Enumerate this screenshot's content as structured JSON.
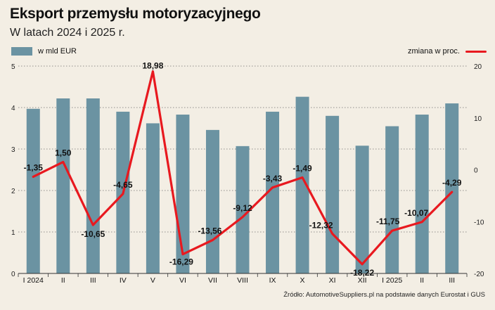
{
  "title": "Eksport przemysłu motoryzacyjnego",
  "subtitle": "W latach 2024 i 2025 r.",
  "source": "Źródło: AutomotiveSuppliers.pl na podstawie danych Eurostat i GUS",
  "colors": {
    "bars": "#6b93a2",
    "line": "#e8191f",
    "background": "#f3eee4",
    "grid": "#333333"
  },
  "chart_data": {
    "type": "bar+line",
    "title": "Eksport przemysłu motoryzacyjnego",
    "subtitle": "W latach 2024 i 2025 r.",
    "categories": [
      "I 2024",
      "II",
      "III",
      "IV",
      "V",
      "VI",
      "VII",
      "VIII",
      "IX",
      "X",
      "XI",
      "XII",
      "I 2025",
      "II",
      "III"
    ],
    "series": [
      {
        "name": "w mld EUR",
        "type": "bar",
        "axis": "left",
        "values": [
          3.97,
          4.22,
          4.22,
          3.9,
          3.62,
          3.83,
          3.46,
          3.07,
          3.9,
          4.26,
          3.8,
          3.08,
          3.55,
          3.83,
          4.1
        ]
      },
      {
        "name": "zmiana w proc.",
        "type": "line",
        "axis": "right",
        "values": [
          -1.35,
          1.5,
          -10.65,
          -4.65,
          18.98,
          -16.29,
          -13.56,
          -9.12,
          -3.43,
          -1.49,
          -12.32,
          -18.22,
          -11.75,
          -10.07,
          -4.29
        ],
        "labels": [
          "-1,35",
          "1,50",
          "-10,65",
          "-4,65",
          "18,98",
          "-16,29",
          "-13,56",
          "-9,12",
          "-3,43",
          "-1,49",
          "-12,32",
          "-18,22",
          "-11,75",
          "-10,07",
          "-4,29"
        ]
      }
    ],
    "y_left": {
      "min": 0,
      "max": 5,
      "ticks": [
        "0",
        "1",
        "2",
        "3",
        "4",
        "5"
      ]
    },
    "y_right": {
      "min": -20,
      "max": 20,
      "ticks": [
        "-20",
        "-10",
        "0",
        "10",
        "20"
      ]
    },
    "grid": "horizontal dashed",
    "legend": [
      "top-left: w mld EUR",
      "top-right: zmiana w proc."
    ]
  }
}
